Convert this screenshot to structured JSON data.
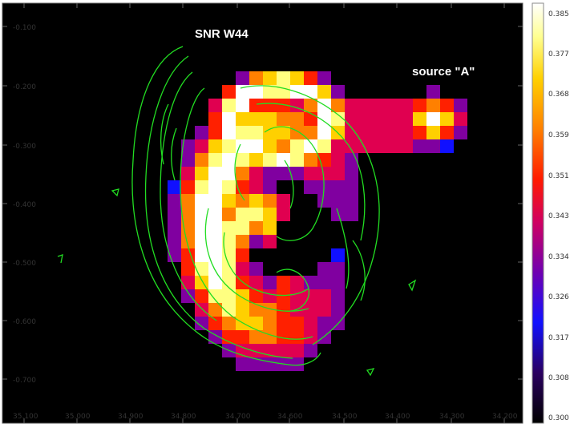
{
  "figure": {
    "annotations": [
      "SNR W44",
      "source \"A\""
    ],
    "x_ticks": [
      "35.100",
      "35.000",
      "34.900",
      "34.800",
      "34.700",
      "34.600",
      "34.500",
      "34.400",
      "34.300",
      "34.200"
    ],
    "y_ticks": [
      "-0.100",
      "-0.200",
      "-0.300",
      "-0.400",
      "-0.500",
      "-0.600",
      "-0.700"
    ],
    "colorbar_ticks": [
      "0.385",
      "0.377",
      "0.368",
      "0.359",
      "0.351",
      "0.343",
      "0.334",
      "0.326",
      "0.317",
      "0.308",
      "0.300"
    ],
    "colormap": [
      "#000000",
      "#1a0033",
      "#3a00a0",
      "#1010ff",
      "#8000a0",
      "#e00050",
      "#ff2000",
      "#ff8000",
      "#ffd000",
      "#ffff80",
      "#ffffff"
    ],
    "contour_color": "#22dd22",
    "background_color": "#000000"
  }
}
